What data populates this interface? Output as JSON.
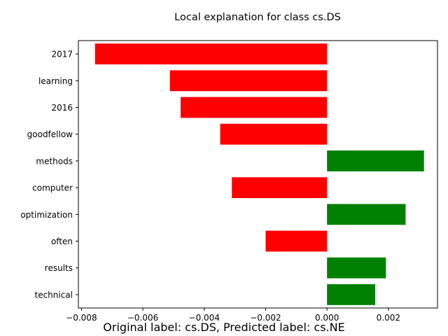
{
  "chart_data": {
    "type": "bar",
    "orientation": "horizontal",
    "title": "Local explanation for class cs.DS",
    "categories": [
      "2017",
      "learning",
      "2016",
      "goodfellow",
      "methods",
      "computer",
      "optimization",
      "often",
      "results",
      "technical"
    ],
    "values": [
      -0.00756,
      -0.00512,
      -0.00477,
      -0.00348,
      0.00316,
      -0.0031,
      0.00256,
      -0.002,
      0.00192,
      0.00157
    ],
    "xlim": [
      -0.0081,
      0.0036
    ],
    "xticks": [
      -0.008,
      -0.006,
      -0.004,
      -0.002,
      0.0,
      0.002
    ],
    "xtick_labels": [
      "−0.008",
      "−0.006",
      "−0.004",
      "−0.002",
      "0.000",
      "0.002"
    ],
    "colors": {
      "positive": "#008000",
      "negative": "#ff0000"
    },
    "grid": false
  },
  "caption": "Original label: cs.DS, Predicted label: cs.NE"
}
